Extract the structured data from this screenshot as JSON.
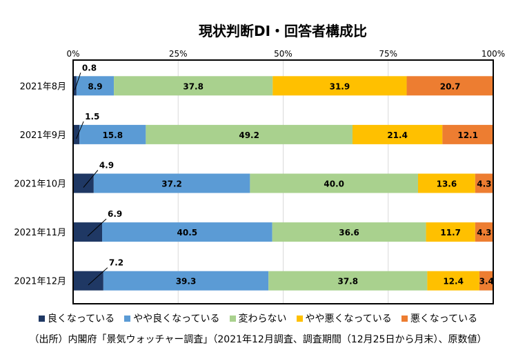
{
  "chart_data": {
    "type": "bar",
    "orientation": "horizontal",
    "stacked": "percent",
    "title": "現状判断DI・回答者構成比",
    "categories": [
      "2021年8月",
      "2021年9月",
      "2021年10月",
      "2021年11月",
      "2021年12月"
    ],
    "x_ticks": [
      "0%",
      "25%",
      "50%",
      "75%",
      "100%"
    ],
    "xlim": [
      0,
      100
    ],
    "grid": true,
    "legend_position": "bottom",
    "series": [
      {
        "name": "良くなっている",
        "color": "#1f3864",
        "values": [
          0.8,
          1.5,
          4.9,
          6.9,
          7.2
        ],
        "labels": [
          "0.8",
          "1.5",
          "4.9",
          "6.9",
          "7.2"
        ]
      },
      {
        "name": "やや良くなっている",
        "color": "#5b9bd5",
        "values": [
          8.9,
          15.8,
          37.2,
          40.5,
          39.3
        ],
        "labels": [
          "8.9",
          "15.8",
          "37.2",
          "40.5",
          "39.3"
        ]
      },
      {
        "name": "変わらない",
        "color": "#a9d18e",
        "values": [
          37.8,
          49.2,
          40.0,
          36.6,
          37.8
        ],
        "labels": [
          "37.8",
          "49.2",
          "40.0",
          "36.6",
          "37.8"
        ]
      },
      {
        "name": "やや悪くなっている",
        "color": "#ffc000",
        "values": [
          31.9,
          21.4,
          13.6,
          11.7,
          12.4
        ],
        "labels": [
          "31.9",
          "21.4",
          "13.6",
          "11.7",
          "12.4"
        ]
      },
      {
        "name": "悪くなっている",
        "color": "#ed7d31",
        "values": [
          20.7,
          12.1,
          4.3,
          4.3,
          3.4
        ],
        "labels": [
          "20.7",
          "12.1",
          "4.3",
          "4.3",
          "3.4"
        ]
      }
    ]
  },
  "source_note": "（出所）内閣府「景気ウォッチャー調査」（2021年12月調査、調査期間（12月25日から月末）、原数値）"
}
